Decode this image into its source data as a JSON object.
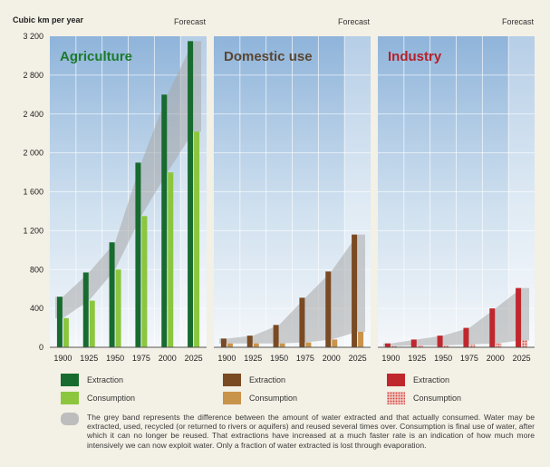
{
  "chart_data": {
    "type": "bar",
    "ylabel": "Cubic km per year",
    "ylim": [
      0,
      3200
    ],
    "yticks": [
      "0",
      "400",
      "800",
      "1 200",
      "1 600",
      "2 000",
      "2 400",
      "2 800",
      "3 200"
    ],
    "categories": [
      "1900",
      "1925",
      "1950",
      "1975",
      "2000",
      "2025"
    ],
    "forecast_label": "Forecast",
    "panels": [
      {
        "title": "Agriculture",
        "title_color": "#1b7a2b",
        "series": [
          {
            "name": "Extraction",
            "color": "#176b2e",
            "values": [
              520,
              770,
              1080,
              1900,
              2600,
              3150
            ]
          },
          {
            "name": "Consumption",
            "color": "#8cc63e",
            "values": [
              300,
              480,
              800,
              1350,
              1800,
              2220
            ]
          }
        ]
      },
      {
        "title": "Domestic use",
        "title_color": "#5a4632",
        "series": [
          {
            "name": "Extraction",
            "color": "#7a4a23",
            "values": [
              90,
              120,
              230,
              510,
              780,
              1160
            ]
          },
          {
            "name": "Consumption",
            "color": "#c8934a",
            "values": [
              40,
              40,
              40,
              50,
              80,
              160
            ]
          }
        ]
      },
      {
        "title": "Industry",
        "title_color": "#b42028",
        "series": [
          {
            "name": "Extraction",
            "color": "#c0272d",
            "values": [
              40,
              80,
              120,
              200,
              400,
              610
            ]
          },
          {
            "name": "Consumption",
            "color": "#e07a72",
            "values": [
              10,
              20,
              20,
              30,
              40,
              70
            ]
          }
        ]
      }
    ]
  },
  "legend": {
    "extraction_label": "Extraction",
    "consumption_label": "Consumption"
  },
  "note": "The grey band represents the difference between the amount of water extracted and that actually consumed. Water may be extracted, used, recycled (or returned to rivers or aquifers) and reused several times over. Consumption is final use of water, after which it can no longer be reused. That extractions have increased at a much faster rate is an indication of how much more intensively we can now exploit water. Only a fraction of water extracted is lost through evaporation."
}
